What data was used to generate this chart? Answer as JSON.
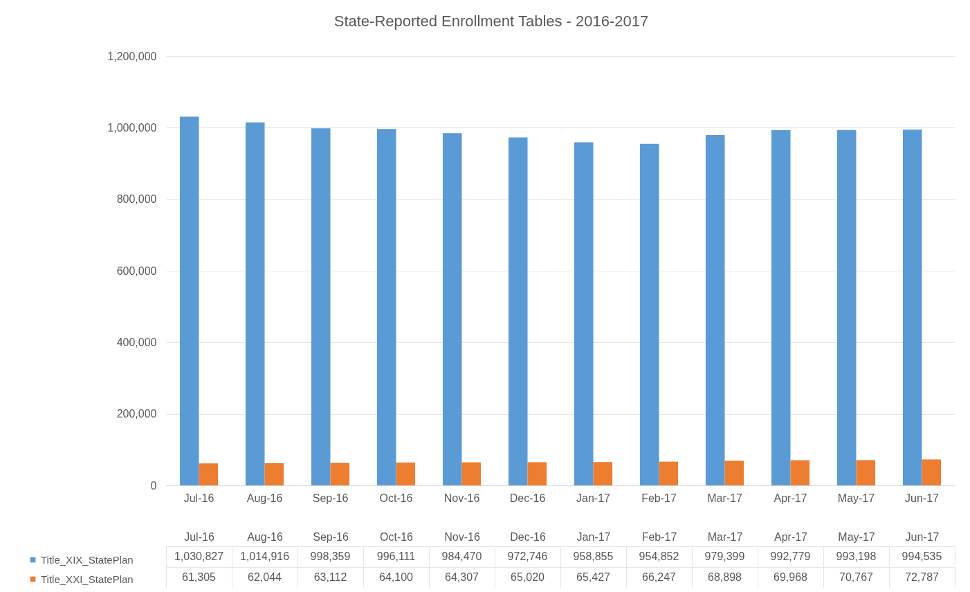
{
  "chart_data": {
    "type": "bar",
    "title": "State-Reported Enrollment Tables - 2016-2017",
    "categories": [
      "Jul-16",
      "Aug-16",
      "Sep-16",
      "Oct-16",
      "Nov-16",
      "Dec-16",
      "Jan-17",
      "Feb-17",
      "Mar-17",
      "Apr-17",
      "May-17",
      "Jun-17"
    ],
    "series": [
      {
        "name": "Title_XIX_StatePlan",
        "color": "#5b9bd5",
        "values": [
          1030827,
          1014916,
          998359,
          996111,
          984470,
          972746,
          958855,
          954852,
          979399,
          992779,
          993198,
          994535
        ],
        "value_labels": [
          "1,030,827",
          "1,014,916",
          "998,359",
          "996,111",
          "984,470",
          "972,746",
          "958,855",
          "954,852",
          "979,399",
          "992,779",
          "993,198",
          "994,535"
        ]
      },
      {
        "name": "Title_XXI_StatePlan",
        "color": "#ed7d31",
        "values": [
          61305,
          62044,
          63112,
          64100,
          64307,
          65020,
          65427,
          66247,
          68898,
          69968,
          70767,
          72787
        ],
        "value_labels": [
          "61,305",
          "62,044",
          "63,112",
          "64,100",
          "64,307",
          "65,020",
          "65,427",
          "66,247",
          "68,898",
          "69,968",
          "70,767",
          "72,787"
        ]
      }
    ],
    "ylim": [
      0,
      1200000
    ],
    "yticks": [
      {
        "value": 0,
        "label": "0"
      },
      {
        "value": 200000,
        "label": "200,000"
      },
      {
        "value": 400000,
        "label": "400,000"
      },
      {
        "value": 600000,
        "label": "600,000"
      },
      {
        "value": 800000,
        "label": "800,000"
      },
      {
        "value": 1000000,
        "label": "1,000,000"
      },
      {
        "value": 1200000,
        "label": "1,200,000"
      }
    ],
    "grid": "y",
    "legend": "bottom"
  }
}
